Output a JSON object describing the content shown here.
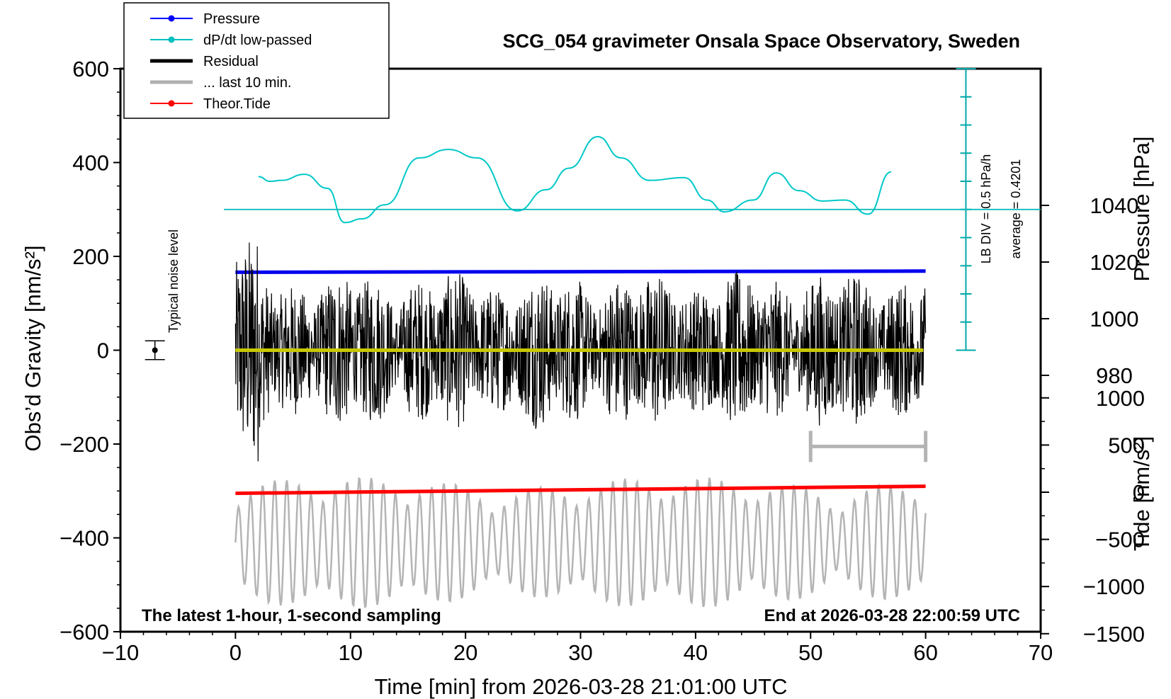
{
  "chart_data": {
    "type": "line",
    "title": "SCG_054 gravimeter Onsala Space Observatory, Sweden",
    "xlabel": "Time [min] from 2026-03-28 21:01:00 UTC",
    "ylabel_left": "Obs’d Gravity [nm/s²]",
    "ylabel_right_pressure": "Pressure [hPa]",
    "ylabel_right_tide": "Tide [nm/s²]",
    "xlim": [
      -10,
      70
    ],
    "ylim": [
      -600,
      600
    ],
    "x_ticks": [
      "−10",
      "0",
      "10",
      "20",
      "30",
      "40",
      "50",
      "60",
      "70"
    ],
    "x_tick_values": [
      -10,
      0,
      10,
      20,
      30,
      40,
      50,
      60,
      70
    ],
    "y_ticks": [
      "600",
      "400",
      "200",
      "0",
      "−200",
      "−400",
      "−600"
    ],
    "y_tick_values": [
      600,
      400,
      200,
      0,
      -200,
      -400,
      -600
    ],
    "pressure_axis": {
      "ticks": [
        "1040",
        "1020",
        "1000",
        "980"
      ],
      "tick_values": [
        1040,
        1020,
        1000,
        980
      ],
      "range": [
        970,
        1070
      ]
    },
    "tide_axis": {
      "ticks": [
        "1000",
        "500",
        "0",
        "−500",
        "−1000",
        "−1500"
      ],
      "tick_values": [
        1000,
        500,
        0,
        -500,
        -1000,
        -1500
      ],
      "range": [
        -1500,
        1000
      ]
    },
    "legend": [
      {
        "name": "Pressure",
        "color": "#0000ff",
        "style": "line-dot"
      },
      {
        "name": "dP/dt low-passed",
        "color": "#00c0c0",
        "style": "line-dot"
      },
      {
        "name": "Residual",
        "color": "#000000",
        "style": "thick"
      },
      {
        "name": "... last 10 min.",
        "color": "#b0b0b0",
        "style": "thick"
      },
      {
        "name": "Theor.Tide",
        "color": "#ff0000",
        "style": "line-dot"
      }
    ],
    "series": [
      {
        "name": "Pressure",
        "unit": "hPa",
        "x": [
          0,
          30,
          60
        ],
        "values": [
          1016.4,
          1016.6,
          1016.8
        ]
      },
      {
        "name": "dP/dt low-passed",
        "unit": "gravity-axis",
        "x": [
          2,
          3,
          4,
          6,
          8,
          9.5,
          11,
          13,
          16,
          18.5,
          21,
          24.5,
          27,
          29,
          31.5,
          33.5,
          36,
          39,
          41,
          42.5,
          45,
          47,
          49,
          51,
          53,
          55,
          57
        ],
        "values": [
          370,
          360,
          362,
          375,
          345,
          272,
          280,
          310,
          410,
          428,
          410,
          297,
          342,
          388,
          455,
          410,
          362,
          368,
          320,
          295,
          320,
          378,
          340,
          318,
          320,
          290,
          380
        ]
      },
      {
        "name": "Residual",
        "unit": "nm/s²",
        "x": [
          0,
          60
        ],
        "values": [
          0,
          0
        ]
      },
      {
        "name": "Theor.Tide",
        "unit": "nm/s²",
        "x": [
          0,
          60
        ],
        "values": [
          -305,
          -290
        ]
      }
    ],
    "pressure_reference_line": 300,
    "side_scale": {
      "label_1": "LB DIV = 0.5 hPa/h",
      "label_2": "average = 0.4201"
    },
    "noise_label": "Typical noise level",
    "noise_bar": {
      "x": -7,
      "y": 0,
      "half_height": 20
    },
    "last10_bar": {
      "x_start": 50,
      "x_end": 60,
      "y": -205
    },
    "footer_left": "The latest 1-hour, 1-second sampling",
    "footer_right": "End at 2026-03-28 22:00:59 UTC"
  }
}
